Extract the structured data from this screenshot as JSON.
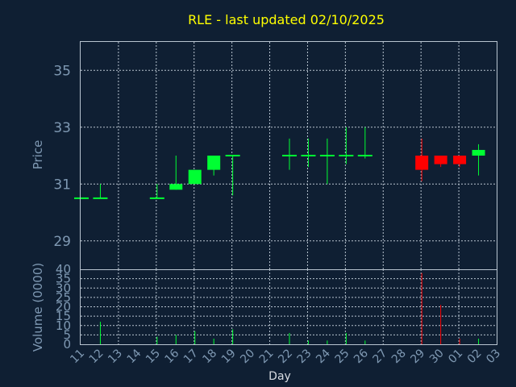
{
  "chart_data": {
    "type": "candlestick",
    "title": "RLE - last updated 02/10/2025",
    "xlabel": "Day",
    "price_panel": {
      "ylabel": "Price",
      "ylim": [
        28,
        36
      ],
      "yticks": [
        29,
        31,
        33,
        35
      ]
    },
    "volume_panel": {
      "ylabel": "Volume (0000)",
      "ylim": [
        0,
        40
      ],
      "yticks": [
        0,
        5,
        10,
        15,
        20,
        25,
        30,
        35,
        40
      ]
    },
    "x_tick_labels": [
      "11",
      "12",
      "13",
      "14",
      "15",
      "16",
      "17",
      "18",
      "19",
      "20",
      "21",
      "22",
      "23",
      "24",
      "25",
      "26",
      "27",
      "28",
      "29",
      "30",
      "01",
      "02",
      "03"
    ],
    "colors": {
      "up": "#00ff33",
      "down": "#ff0000",
      "title": "#ffff00",
      "axis_text": "#7f99b3",
      "background": "#0f1f33"
    },
    "candles": [
      {
        "day": "11",
        "open": 30.5,
        "high": 30.5,
        "low": 30.5,
        "close": 30.5,
        "volume": 0
      },
      {
        "day": "12",
        "open": 30.5,
        "high": 31.0,
        "low": 30.5,
        "close": 30.5,
        "volume": 12
      },
      {
        "day": "15",
        "open": 30.5,
        "high": 31.0,
        "low": 30.5,
        "close": 30.5,
        "volume": 4
      },
      {
        "day": "16",
        "open": 30.8,
        "high": 32.0,
        "low": 30.8,
        "close": 31.0,
        "volume": 5
      },
      {
        "day": "17",
        "open": 31.0,
        "high": 31.5,
        "low": 31.0,
        "close": 31.5,
        "volume": 7
      },
      {
        "day": "18",
        "open": 31.5,
        "high": 32.0,
        "low": 31.3,
        "close": 32.0,
        "volume": 3
      },
      {
        "day": "19",
        "open": 32.0,
        "high": 32.0,
        "low": 30.6,
        "close": 32.0,
        "volume": 8
      },
      {
        "day": "22",
        "open": 32.0,
        "high": 32.6,
        "low": 31.5,
        "close": 32.0,
        "volume": 6
      },
      {
        "day": "23",
        "open": 32.0,
        "high": 32.6,
        "low": 31.6,
        "close": 32.0,
        "volume": 2
      },
      {
        "day": "24",
        "open": 32.0,
        "high": 32.6,
        "low": 31.0,
        "close": 32.0,
        "volume": 2
      },
      {
        "day": "25",
        "open": 32.0,
        "high": 33.0,
        "low": 31.7,
        "close": 32.0,
        "volume": 6
      },
      {
        "day": "26",
        "open": 32.0,
        "high": 33.0,
        "low": 31.9,
        "close": 32.0,
        "volume": 2
      },
      {
        "day": "29",
        "open": 32.0,
        "high": 32.6,
        "low": 31.1,
        "close": 31.5,
        "volume": 38
      },
      {
        "day": "30",
        "open": 32.0,
        "high": 32.0,
        "low": 31.6,
        "close": 31.7,
        "volume": 21
      },
      {
        "day": "01",
        "open": 32.0,
        "high": 32.0,
        "low": 31.6,
        "close": 31.7,
        "volume": 3
      },
      {
        "day": "02",
        "open": 32.0,
        "high": 32.4,
        "low": 31.3,
        "close": 32.2,
        "volume": 3
      }
    ]
  }
}
